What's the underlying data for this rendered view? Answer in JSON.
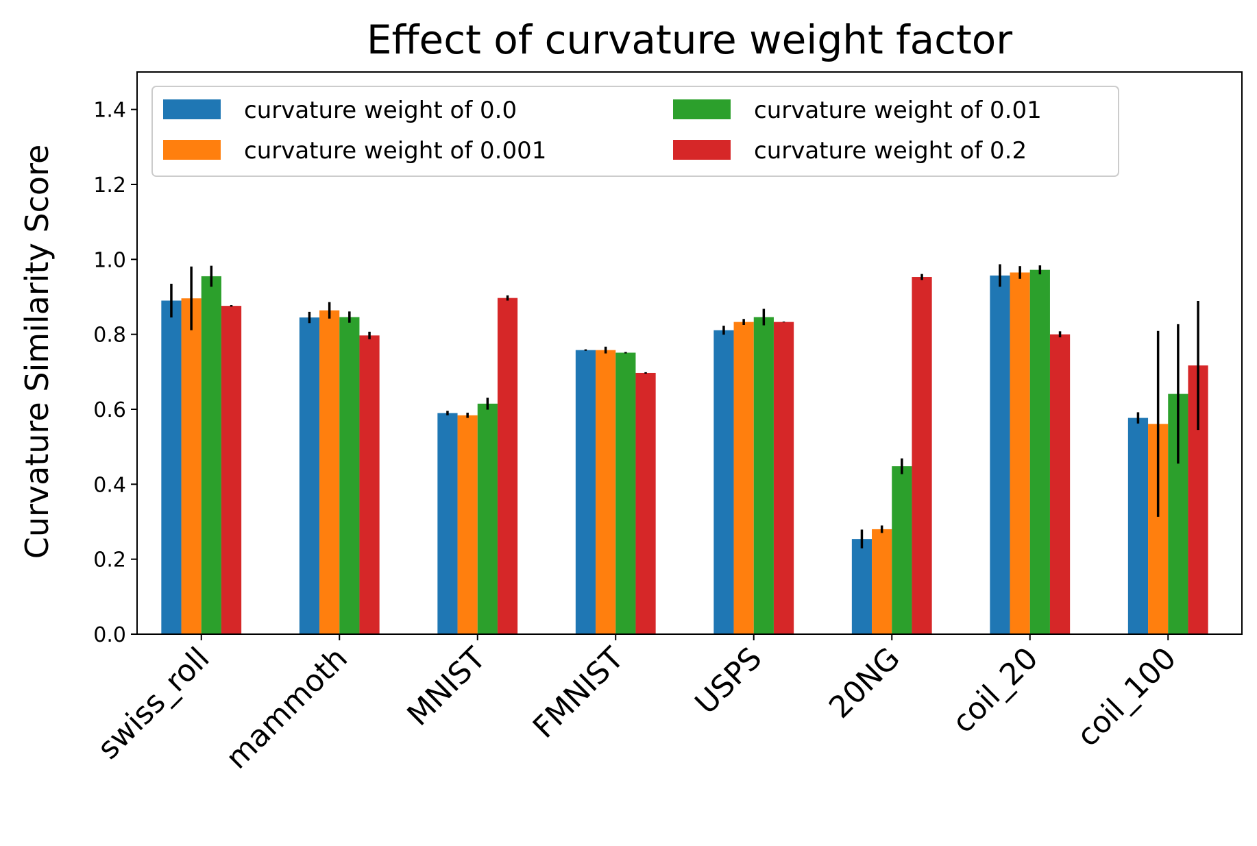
{
  "chart_data": {
    "type": "bar",
    "title": "Effect of curvature weight factor",
    "xlabel": "",
    "ylabel": "Curvature Similarity Score",
    "ylim": [
      0,
      1.5
    ],
    "yticks": [
      "0.0",
      "0.2",
      "0.4",
      "0.6",
      "0.8",
      "1.0",
      "1.2",
      "1.4"
    ],
    "ytick_values": [
      0,
      0.2,
      0.4,
      0.6,
      0.8,
      1.0,
      1.2,
      1.4
    ],
    "grid": false,
    "legend_position": "top-left",
    "legend_columns": 2,
    "categories": [
      "swiss_roll",
      "mammoth",
      "MNIST",
      "FMNIST",
      "USPS",
      "20NG",
      "coil_20",
      "coil_100"
    ],
    "series": [
      {
        "name": "curvature weight of 0.0",
        "color": "#1f77b4",
        "values": [
          0.89,
          0.845,
          0.59,
          0.758,
          0.811,
          0.254,
          0.957,
          0.577
        ],
        "errors": [
          0.045,
          0.015,
          0.006,
          0.002,
          0.012,
          0.025,
          0.03,
          0.015
        ]
      },
      {
        "name": "curvature weight of 0.001",
        "color": "#ff7f0e",
        "values": [
          0.896,
          0.864,
          0.584,
          0.758,
          0.833,
          0.28,
          0.965,
          0.561
        ],
        "errors": [
          0.085,
          0.022,
          0.007,
          0.009,
          0.008,
          0.01,
          0.017,
          0.248
        ]
      },
      {
        "name": "curvature weight of 0.01",
        "color": "#2ca02c",
        "values": [
          0.955,
          0.846,
          0.615,
          0.751,
          0.846,
          0.448,
          0.972,
          0.641
        ],
        "errors": [
          0.028,
          0.015,
          0.016,
          0.002,
          0.022,
          0.021,
          0.012,
          0.186
        ]
      },
      {
        "name": "curvature weight of 0.2",
        "color": "#d62728",
        "values": [
          0.876,
          0.797,
          0.897,
          0.697,
          0.833,
          0.953,
          0.8,
          0.717
        ],
        "errors": [
          0.002,
          0.01,
          0.007,
          0.002,
          0.001,
          0.008,
          0.008,
          0.172
        ]
      }
    ]
  }
}
